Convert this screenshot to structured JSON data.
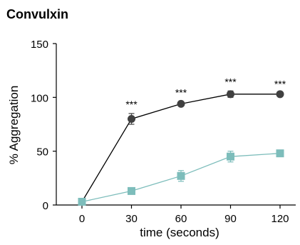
{
  "chart_data": {
    "type": "line",
    "title": "Convulxin",
    "xlabel": "time (seconds)",
    "ylabel": "% Aggregation",
    "x": [
      0,
      30,
      60,
      90,
      120
    ],
    "x_ticks": [
      "0",
      "30",
      "60",
      "90",
      "120"
    ],
    "y_ticks": [
      "0",
      "50",
      "100",
      "150"
    ],
    "xlim": [
      0,
      120
    ],
    "ylim": [
      0,
      150
    ],
    "grid": false,
    "series": [
      {
        "color": "#404040",
        "marker": "circle",
        "values": [
          3,
          80,
          94,
          103,
          103
        ],
        "error": [
          0,
          5,
          2,
          3,
          1
        ]
      },
      {
        "color": "#7dbdbb",
        "marker": "square",
        "values": [
          3,
          13,
          27,
          45,
          48
        ],
        "error": [
          0,
          1,
          5,
          5,
          1
        ]
      }
    ],
    "annotations": [
      {
        "x": 30,
        "text": "***"
      },
      {
        "x": 60,
        "text": "***"
      },
      {
        "x": 90,
        "text": "***"
      },
      {
        "x": 120,
        "text": "***"
      }
    ]
  }
}
